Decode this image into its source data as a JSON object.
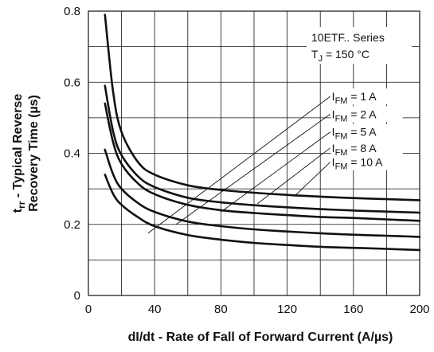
{
  "chart_data": {
    "type": "line",
    "title": "",
    "xlabel": "dI/dt - Rate of Fall of Forward Current (A/µs)",
    "ylabel_line1": "trr - Typical Reverse",
    "ylabel_line2": "Recovery Time (µs)",
    "xlim": [
      0,
      200
    ],
    "ylim": [
      0,
      0.8
    ],
    "x_ticks": [
      0,
      40,
      80,
      120,
      160,
      200
    ],
    "y_ticks": [
      0,
      0.2,
      0.4,
      0.6,
      0.8
    ],
    "x_tick_labels": [
      "0",
      "40",
      "80",
      "120",
      "160",
      "200"
    ],
    "y_tick_labels": [
      "0",
      "0.2",
      "0.4",
      "0.6",
      "0.8"
    ],
    "grid": true,
    "annotation_series_line": "10ETF.. Series",
    "annotation_tj": "TJ = 150 °C",
    "series": [
      {
        "name": "IFM = 1 A",
        "x": [
          10,
          15,
          20,
          30,
          40,
          60,
          80,
          100,
          120,
          140,
          160,
          180,
          200
        ],
        "y": [
          0.34,
          0.285,
          0.255,
          0.22,
          0.195,
          0.17,
          0.157,
          0.148,
          0.142,
          0.137,
          0.134,
          0.131,
          0.128
        ]
      },
      {
        "name": "IFM = 2 A",
        "x": [
          10,
          15,
          20,
          30,
          40,
          60,
          80,
          100,
          120,
          140,
          160,
          180,
          200
        ],
        "y": [
          0.41,
          0.34,
          0.3,
          0.26,
          0.235,
          0.208,
          0.195,
          0.186,
          0.18,
          0.175,
          0.171,
          0.168,
          0.165
        ]
      },
      {
        "name": "IFM = 5 A",
        "x": [
          10,
          15,
          20,
          30,
          40,
          60,
          80,
          100,
          120,
          140,
          160,
          180,
          200
        ],
        "y": [
          0.54,
          0.43,
          0.37,
          0.315,
          0.285,
          0.255,
          0.24,
          0.232,
          0.226,
          0.221,
          0.218,
          0.214,
          0.21
        ]
      },
      {
        "name": "IFM = 8 A",
        "x": [
          10,
          15,
          20,
          30,
          40,
          60,
          80,
          100,
          120,
          140,
          160,
          180,
          200
        ],
        "y": [
          0.59,
          0.46,
          0.395,
          0.335,
          0.305,
          0.275,
          0.262,
          0.254,
          0.248,
          0.243,
          0.239,
          0.236,
          0.233
        ]
      },
      {
        "name": "IFM = 10 A",
        "x": [
          10,
          15,
          20,
          30,
          40,
          60,
          80,
          100,
          120,
          140,
          160,
          180,
          200
        ],
        "y": [
          0.79,
          0.57,
          0.46,
          0.375,
          0.34,
          0.31,
          0.297,
          0.289,
          0.283,
          0.278,
          0.274,
          0.271,
          0.268
        ]
      }
    ],
    "leader_lines": [
      {
        "label": "IFM = 1 A",
        "from": [
          36,
          0.175
        ],
        "to": [
          146,
          0.56
        ]
      },
      {
        "label": "IFM = 2 A",
        "from": [
          53,
          0.2
        ],
        "to": [
          146,
          0.51
        ]
      },
      {
        "label": "IFM = 5 A",
        "from": [
          80,
          0.235
        ],
        "to": [
          146,
          0.46
        ]
      },
      {
        "label": "IFM = 8 A",
        "from": [
          102,
          0.258
        ],
        "to": [
          146,
          0.415
        ]
      },
      {
        "label": "IFM = 10 A",
        "from": [
          125,
          0.282
        ],
        "to": [
          146,
          0.375
        ]
      }
    ]
  }
}
